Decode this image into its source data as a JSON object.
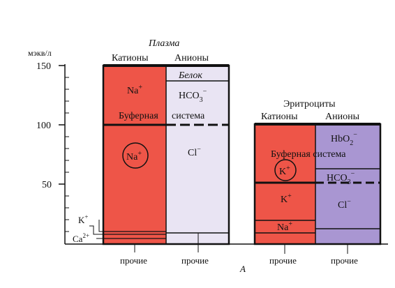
{
  "axis": {
    "unit": "мэкв/л",
    "ticks": [
      150,
      100,
      50
    ],
    "low_labels": [
      "K+",
      "Ca2+"
    ],
    "ion_labels": {
      "k": "K",
      "k_sup": "+",
      "ca": "Ca",
      "ca_sup": "2+"
    }
  },
  "plasma": {
    "title": "Плазма",
    "cations_header": "Катионы",
    "anions_header": "Анионы",
    "na_upper": "Na+",
    "na_upper_parts": {
      "base": "Na",
      "sup": "+"
    },
    "buffer_left": "Буферная",
    "buffer_right": "система",
    "na_circle": "Na+",
    "na_circle_parts": {
      "base": "Na",
      "sup": "+"
    },
    "protein": "Белок",
    "hco3": "HCO3−",
    "hco3_parts": {
      "base": "HCO",
      "sub": "3",
      "sup": "−"
    },
    "cl": "Cl−",
    "cl_parts": {
      "base": "Cl",
      "sup": "−"
    },
    "other_left": "прочие",
    "other_right": "прочие"
  },
  "erythrocytes": {
    "title": "Эритроциты",
    "cations_header": "Катионы",
    "anions_header": "Анионы",
    "hbo2": "HbO2−",
    "hbo2_parts": {
      "base": "HbO",
      "sub": "2",
      "sup": "−"
    },
    "buffer": "Буферная система",
    "k_circle": "K+",
    "k_circle_parts": {
      "base": "K",
      "sup": "+"
    },
    "hco3": "HCO3−",
    "hco3_parts": {
      "base": "HCO",
      "sub": "3",
      "sup": "−"
    },
    "k_lower": "K+",
    "k_lower_parts": {
      "base": "K",
      "sup": "+"
    },
    "cl": "Cl−",
    "cl_parts": {
      "base": "Cl",
      "sup": "−"
    },
    "na": "Na+",
    "na_parts": {
      "base": "Na",
      "sup": "+"
    },
    "other_left": "прочие",
    "other_right": "прочие"
  },
  "figure_letter": "А",
  "colors": {
    "cation_fill": "#ee5548",
    "anion_fill": "#e9e4f3",
    "anion_fill_ery": "#a996d2",
    "line": "#111111"
  }
}
